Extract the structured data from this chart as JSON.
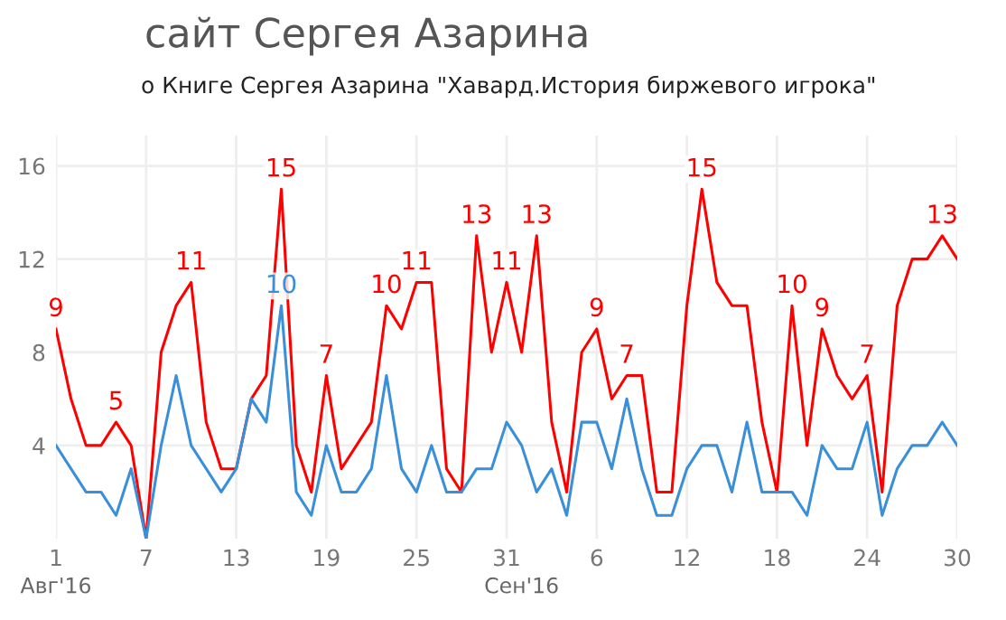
{
  "chart_data": {
    "type": "line",
    "title": "сайт Сергея Азарина",
    "subtitle": "о Книге Сергея Азарина \"Хавард.История биржевого игрока\"",
    "x": [
      "2016-08-01",
      "2016-08-02",
      "2016-08-03",
      "2016-08-04",
      "2016-08-05",
      "2016-08-06",
      "2016-08-07",
      "2016-08-08",
      "2016-08-09",
      "2016-08-10",
      "2016-08-11",
      "2016-08-12",
      "2016-08-13",
      "2016-08-14",
      "2016-08-15",
      "2016-08-16",
      "2016-08-17",
      "2016-08-18",
      "2016-08-19",
      "2016-08-20",
      "2016-08-21",
      "2016-08-22",
      "2016-08-23",
      "2016-08-24",
      "2016-08-25",
      "2016-08-26",
      "2016-08-27",
      "2016-08-28",
      "2016-08-29",
      "2016-08-30",
      "2016-08-31",
      "2016-09-01",
      "2016-09-02",
      "2016-09-03",
      "2016-09-04",
      "2016-09-05",
      "2016-09-06",
      "2016-09-07",
      "2016-09-08",
      "2016-09-09",
      "2016-09-10",
      "2016-09-11",
      "2016-09-12",
      "2016-09-13",
      "2016-09-14",
      "2016-09-15",
      "2016-09-16",
      "2016-09-17",
      "2016-09-18",
      "2016-09-19",
      "2016-09-20",
      "2016-09-21",
      "2016-09-22",
      "2016-09-23",
      "2016-09-24",
      "2016-09-25",
      "2016-09-26",
      "2016-09-27",
      "2016-09-28",
      "2016-09-29",
      "2016-09-30"
    ],
    "series": [
      {
        "color": "#ff0000",
        "values": [
          9,
          6,
          4,
          4,
          5,
          4,
          0,
          8,
          10,
          11,
          5,
          3,
          3,
          6,
          7,
          15,
          4,
          2,
          7,
          3,
          4,
          5,
          10,
          9,
          11,
          11,
          3,
          2,
          13,
          8,
          11,
          8,
          13,
          5,
          2,
          8,
          9,
          6,
          7,
          7,
          2,
          2,
          10,
          15,
          11,
          10,
          10,
          5,
          2,
          10,
          4,
          9,
          7,
          6,
          7,
          2,
          10,
          12,
          12,
          13,
          12
        ],
        "value_labels": [
          "9",
          null,
          null,
          null,
          "5",
          null,
          null,
          null,
          null,
          "11",
          null,
          null,
          null,
          null,
          null,
          "15",
          null,
          null,
          "7",
          null,
          null,
          null,
          "10",
          null,
          "11",
          null,
          null,
          null,
          "13",
          null,
          "11",
          null,
          "13",
          null,
          null,
          null,
          "9",
          null,
          "7",
          null,
          null,
          null,
          null,
          "15",
          null,
          null,
          null,
          null,
          null,
          "10",
          null,
          "9",
          null,
          null,
          "7",
          null,
          null,
          null,
          null,
          "13",
          null
        ]
      },
      {
        "color": "#3a8fd9",
        "values": [
          4,
          3,
          2,
          2,
          1,
          3,
          0,
          4,
          7,
          4,
          3,
          2,
          3,
          6,
          5,
          10,
          2,
          1,
          4,
          2,
          2,
          3,
          7,
          3,
          2,
          4,
          2,
          2,
          3,
          3,
          5,
          4,
          2,
          3,
          1,
          5,
          5,
          3,
          6,
          3,
          1,
          1,
          3,
          4,
          4,
          2,
          5,
          2,
          2,
          2,
          1,
          4,
          3,
          3,
          5,
          1,
          3,
          4,
          4,
          5,
          4
        ],
        "value_labels": [
          null,
          null,
          null,
          null,
          null,
          null,
          null,
          null,
          null,
          null,
          null,
          null,
          null,
          null,
          null,
          "10",
          null,
          null,
          null,
          null,
          null,
          null,
          null,
          null,
          null,
          null,
          null,
          null,
          null,
          null,
          null,
          null,
          null,
          null,
          null,
          null,
          null,
          null,
          null,
          null,
          null,
          null,
          null,
          null,
          null,
          null,
          null,
          null,
          null,
          null,
          null,
          null,
          null,
          null,
          null,
          null,
          null,
          null,
          null,
          null,
          null
        ]
      }
    ],
    "xlim": [
      "2016-08-01",
      "2016-09-30"
    ],
    "x2lim": [
      "2016-08-01",
      "2016-09-30"
    ],
    "x2ticks": [
      {
        "value": "2016-08-01",
        "label": "Авг'16"
      },
      {
        "value": "2016-09-01",
        "label": "Сен'16"
      }
    ],
    "xticks": [
      {
        "value": "2016-08-01",
        "label": "1"
      },
      {
        "value": "2016-08-07",
        "label": "7"
      },
      {
        "value": "2016-08-13",
        "label": "13"
      },
      {
        "value": "2016-08-19",
        "label": "19"
      },
      {
        "value": "2016-08-25",
        "label": "25"
      },
      {
        "value": "2016-08-31",
        "label": "31"
      },
      {
        "value": "2016-09-06",
        "label": "6"
      },
      {
        "value": "2016-09-12",
        "label": "12"
      },
      {
        "value": "2016-09-18",
        "label": "18"
      },
      {
        "value": "2016-09-24",
        "label": "24"
      },
      {
        "value": "2016-09-30",
        "label": "30"
      }
    ],
    "ylim": [
      0,
      17.3
    ],
    "yticks": [
      4,
      8,
      12,
      16
    ],
    "grid": true,
    "line_style": "solid",
    "marker": "none",
    "legend": false
  }
}
